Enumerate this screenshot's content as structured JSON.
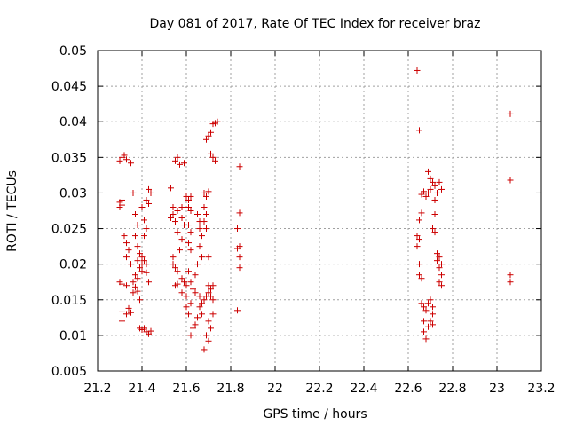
{
  "chart_data": {
    "type": "scatter",
    "title": "Day 081 of 2017, Rate Of TEC Index for receiver braz",
    "xlabel": "GPS time / hours",
    "ylabel": "ROTI / TECUs",
    "xlim": [
      21.2,
      23.2
    ],
    "ylim": [
      0.005,
      0.05
    ],
    "xticks": [
      "21.2",
      "21.4",
      "21.6",
      "21.8",
      "22",
      "22.2",
      "22.4",
      "22.6",
      "22.8",
      "23",
      "23.2"
    ],
    "yticks": [
      "0.005",
      "0.01",
      "0.015",
      "0.02",
      "0.025",
      "0.03",
      "0.035",
      "0.04",
      "0.045",
      "0.05"
    ],
    "grid": true,
    "marker": "+",
    "marker_color": "#cc0000",
    "series": [
      {
        "points": [
          [
            21.3,
            0.0345
          ],
          [
            21.31,
            0.035
          ],
          [
            21.32,
            0.0353
          ],
          [
            21.33,
            0.0347
          ],
          [
            21.35,
            0.0342
          ],
          [
            21.3,
            0.0287
          ],
          [
            21.31,
            0.0283
          ],
          [
            21.3,
            0.028
          ],
          [
            21.31,
            0.029
          ],
          [
            21.32,
            0.024
          ],
          [
            21.33,
            0.023
          ],
          [
            21.34,
            0.022
          ],
          [
            21.33,
            0.021
          ],
          [
            21.35,
            0.02
          ],
          [
            21.3,
            0.0175
          ],
          [
            21.31,
            0.0172
          ],
          [
            21.33,
            0.017
          ],
          [
            21.31,
            0.0133
          ],
          [
            21.33,
            0.013
          ],
          [
            21.35,
            0.0132
          ],
          [
            21.34,
            0.0138
          ],
          [
            21.31,
            0.012
          ],
          [
            21.36,
            0.03
          ],
          [
            21.37,
            0.027
          ],
          [
            21.38,
            0.0255
          ],
          [
            21.37,
            0.024
          ],
          [
            21.38,
            0.0225
          ],
          [
            21.39,
            0.0215
          ],
          [
            21.38,
            0.0205
          ],
          [
            21.4,
            0.02
          ],
          [
            21.39,
            0.0195
          ],
          [
            21.4,
            0.019
          ],
          [
            21.37,
            0.0185
          ],
          [
            21.38,
            0.018
          ],
          [
            21.36,
            0.0175
          ],
          [
            21.37,
            0.0168
          ],
          [
            21.38,
            0.0162
          ],
          [
            21.39,
            0.015
          ],
          [
            21.36,
            0.016
          ],
          [
            21.4,
            0.021
          ],
          [
            21.41,
            0.0205
          ],
          [
            21.42,
            0.02
          ],
          [
            21.41,
            0.024
          ],
          [
            21.42,
            0.025
          ],
          [
            21.41,
            0.0262
          ],
          [
            21.4,
            0.028
          ],
          [
            21.42,
            0.029
          ],
          [
            21.43,
            0.0285
          ],
          [
            21.43,
            0.0305
          ],
          [
            21.44,
            0.03
          ],
          [
            21.42,
            0.0188
          ],
          [
            21.43,
            0.0175
          ],
          [
            21.39,
            0.011
          ],
          [
            21.4,
            0.0108
          ],
          [
            21.41,
            0.011
          ],
          [
            21.42,
            0.0105
          ],
          [
            21.43,
            0.0102
          ],
          [
            21.44,
            0.0106
          ],
          [
            21.53,
            0.0307
          ],
          [
            21.55,
            0.0345
          ],
          [
            21.56,
            0.035
          ],
          [
            21.57,
            0.034
          ],
          [
            21.59,
            0.0342
          ],
          [
            21.54,
            0.028
          ],
          [
            21.54,
            0.027
          ],
          [
            21.53,
            0.0265
          ],
          [
            21.55,
            0.026
          ],
          [
            21.56,
            0.0275
          ],
          [
            21.58,
            0.028
          ],
          [
            21.58,
            0.0265
          ],
          [
            21.59,
            0.0255
          ],
          [
            21.56,
            0.0245
          ],
          [
            21.58,
            0.0235
          ],
          [
            21.54,
            0.021
          ],
          [
            21.54,
            0.02
          ],
          [
            21.55,
            0.0195
          ],
          [
            21.56,
            0.019
          ],
          [
            21.57,
            0.022
          ],
          [
            21.55,
            0.017
          ],
          [
            21.56,
            0.0172
          ],
          [
            21.58,
            0.018
          ],
          [
            21.59,
            0.0175
          ],
          [
            21.6,
            0.017
          ],
          [
            21.58,
            0.016
          ],
          [
            21.6,
            0.0155
          ],
          [
            21.6,
            0.014
          ],
          [
            21.61,
            0.013
          ],
          [
            21.62,
            0.0145
          ],
          [
            21.6,
            0.0295
          ],
          [
            21.61,
            0.029
          ],
          [
            21.62,
            0.0295
          ],
          [
            21.61,
            0.028
          ],
          [
            21.62,
            0.0275
          ],
          [
            21.61,
            0.0255
          ],
          [
            21.62,
            0.0245
          ],
          [
            21.61,
            0.023
          ],
          [
            21.62,
            0.022
          ],
          [
            21.61,
            0.019
          ],
          [
            21.62,
            0.0175
          ],
          [
            21.63,
            0.0165
          ],
          [
            21.64,
            0.016
          ],
          [
            21.64,
            0.0185
          ],
          [
            21.65,
            0.02
          ],
          [
            21.65,
            0.027
          ],
          [
            21.66,
            0.026
          ],
          [
            21.66,
            0.025
          ],
          [
            21.67,
            0.024
          ],
          [
            21.66,
            0.0225
          ],
          [
            21.67,
            0.021
          ],
          [
            21.63,
            0.011
          ],
          [
            21.62,
            0.01
          ],
          [
            21.64,
            0.0115
          ],
          [
            21.65,
            0.0125
          ],
          [
            21.66,
            0.014
          ],
          [
            21.67,
            0.0145
          ],
          [
            21.68,
            0.015
          ],
          [
            21.69,
            0.0155
          ],
          [
            21.7,
            0.016
          ],
          [
            21.71,
            0.0155
          ],
          [
            21.72,
            0.015
          ],
          [
            21.68,
            0.03
          ],
          [
            21.69,
            0.0295
          ],
          [
            21.7,
            0.0302
          ],
          [
            21.68,
            0.028
          ],
          [
            21.69,
            0.027
          ],
          [
            21.68,
            0.026
          ],
          [
            21.69,
            0.025
          ],
          [
            21.7,
            0.021
          ],
          [
            21.7,
            0.017
          ],
          [
            21.71,
            0.0165
          ],
          [
            21.72,
            0.017
          ],
          [
            21.69,
            0.0375
          ],
          [
            21.7,
            0.038
          ],
          [
            21.71,
            0.0385
          ],
          [
            21.71,
            0.0355
          ],
          [
            21.72,
            0.035
          ],
          [
            21.73,
            0.0345
          ],
          [
            21.72,
            0.0397
          ],
          [
            21.73,
            0.0398
          ],
          [
            21.74,
            0.04
          ],
          [
            21.7,
            0.012
          ],
          [
            21.71,
            0.011
          ],
          [
            21.69,
            0.01
          ],
          [
            21.68,
            0.008
          ],
          [
            21.7,
            0.0092
          ],
          [
            21.72,
            0.013
          ],
          [
            21.66,
            0.0155
          ],
          [
            21.67,
            0.013
          ],
          [
            21.84,
            0.0337
          ],
          [
            21.84,
            0.0272
          ],
          [
            21.83,
            0.025
          ],
          [
            21.84,
            0.0225
          ],
          [
            21.83,
            0.0222
          ],
          [
            21.84,
            0.021
          ],
          [
            21.84,
            0.0195
          ],
          [
            21.83,
            0.0135
          ],
          [
            22.64,
            0.0472
          ],
          [
            22.65,
            0.0388
          ],
          [
            22.65,
            0.0262
          ],
          [
            22.66,
            0.0272
          ],
          [
            22.64,
            0.024
          ],
          [
            22.65,
            0.0235
          ],
          [
            22.64,
            0.0225
          ],
          [
            22.65,
            0.02
          ],
          [
            22.65,
            0.0185
          ],
          [
            22.66,
            0.018
          ],
          [
            22.66,
            0.0145
          ],
          [
            22.67,
            0.014
          ],
          [
            22.68,
            0.0135
          ],
          [
            22.67,
            0.012
          ],
          [
            22.67,
            0.0105
          ],
          [
            22.68,
            0.0095
          ],
          [
            22.66,
            0.0298
          ],
          [
            22.67,
            0.0302
          ],
          [
            22.68,
            0.0295
          ],
          [
            22.69,
            0.03
          ],
          [
            22.7,
            0.0305
          ],
          [
            22.69,
            0.033
          ],
          [
            22.7,
            0.032
          ],
          [
            22.71,
            0.0315
          ],
          [
            22.72,
            0.031
          ],
          [
            22.73,
            0.03
          ],
          [
            22.72,
            0.029
          ],
          [
            22.74,
            0.0315
          ],
          [
            22.75,
            0.0305
          ],
          [
            22.71,
            0.025
          ],
          [
            22.72,
            0.0245
          ],
          [
            22.72,
            0.027
          ],
          [
            22.73,
            0.0215
          ],
          [
            22.74,
            0.021
          ],
          [
            22.75,
            0.02
          ],
          [
            22.73,
            0.0205
          ],
          [
            22.74,
            0.0195
          ],
          [
            22.75,
            0.0185
          ],
          [
            22.74,
            0.0175
          ],
          [
            22.75,
            0.017
          ],
          [
            22.69,
            0.0145
          ],
          [
            22.7,
            0.015
          ],
          [
            22.71,
            0.014
          ],
          [
            22.71,
            0.013
          ],
          [
            22.7,
            0.012
          ],
          [
            22.71,
            0.0115
          ],
          [
            22.69,
            0.0112
          ],
          [
            23.06,
            0.0411
          ],
          [
            23.06,
            0.0318
          ],
          [
            23.06,
            0.0185
          ],
          [
            23.06,
            0.0175
          ]
        ]
      }
    ]
  }
}
